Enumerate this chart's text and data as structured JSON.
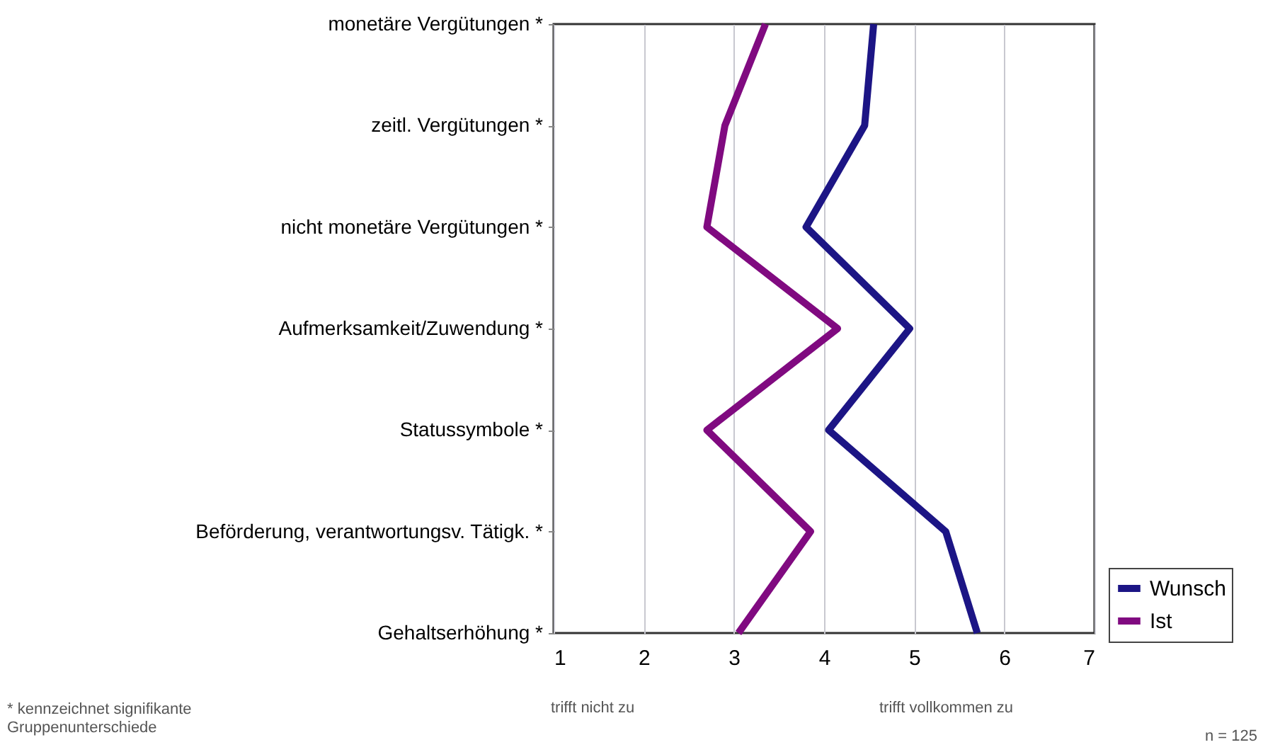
{
  "chart_data": {
    "type": "line",
    "orientation": "horizontal",
    "categories": [
      "monetäre Vergütungen *",
      "zeitl. Vergütungen *",
      "nicht monetäre Vergütungen *",
      "Aufmerksamkeit/Zuwendung *",
      "Statussymbole *",
      "Beförderung, verantwortungsv. Tätigk. *",
      "Gehaltserhöhung *"
    ],
    "series": [
      {
        "name": "Wunsch",
        "color": "#1c1585",
        "values": [
          4.55,
          4.45,
          3.8,
          4.95,
          4.05,
          5.35,
          5.7
        ]
      },
      {
        "name": "Ist",
        "color": "#800a80",
        "values": [
          3.35,
          2.9,
          2.7,
          4.15,
          2.7,
          3.85,
          3.05
        ]
      }
    ],
    "xlim": [
      1,
      7
    ],
    "xticks": [
      1,
      2,
      3,
      4,
      5,
      6,
      7
    ],
    "grid": "x",
    "legend": "bottom right",
    "marker": "none",
    "line_style": "solid",
    "annotations": [
      "trifft nicht zu",
      "trifft vollkommen zu",
      "* kennzeichnet signifikante Gruppenunterschiede",
      "n = 125"
    ]
  }
}
